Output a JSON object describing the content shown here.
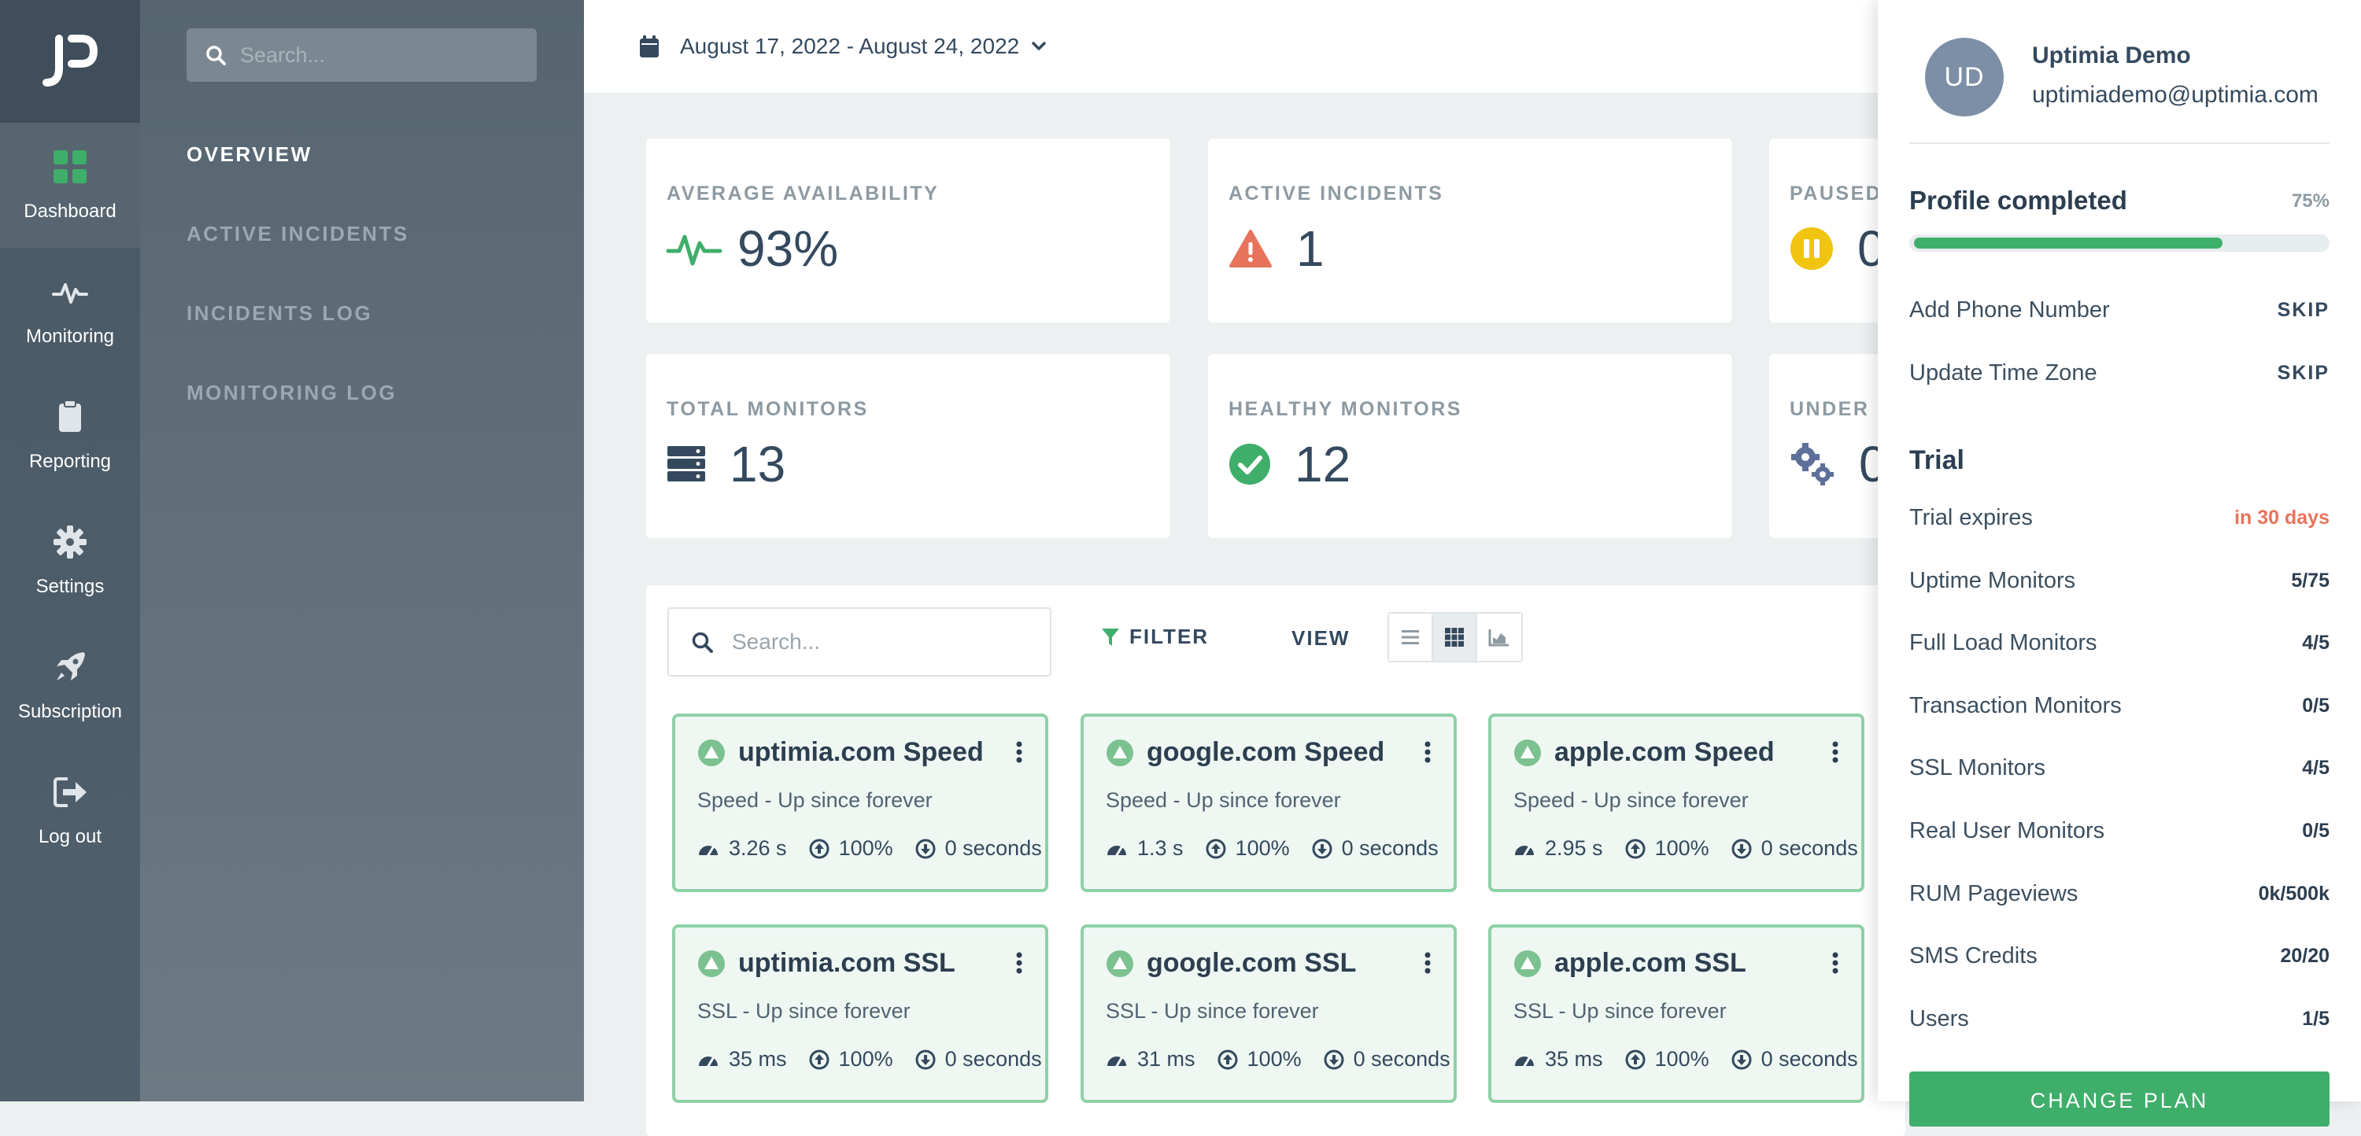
{
  "rail": {
    "items": [
      {
        "label": "Dashboard",
        "icon": "dashboard-icon"
      },
      {
        "label": "Monitoring",
        "icon": "pulse-icon"
      },
      {
        "label": "Reporting",
        "icon": "clipboard-icon"
      },
      {
        "label": "Settings",
        "icon": "gear-icon"
      },
      {
        "label": "Subscription",
        "icon": "rocket-icon"
      },
      {
        "label": "Log out",
        "icon": "logout-icon"
      }
    ]
  },
  "subnav": {
    "search_placeholder": "Search...",
    "links": [
      "OVERVIEW",
      "ACTIVE INCIDENTS",
      "INCIDENTS LOG",
      "MONITORING LOG"
    ]
  },
  "topbar": {
    "date_range": "August 17, 2022 - August 24, 2022"
  },
  "stats": [
    {
      "title": "AVERAGE AVAILABILITY",
      "value": "93%",
      "icon": "pulse-icon"
    },
    {
      "title": "ACTIVE INCIDENTS",
      "value": "1",
      "icon": "warning-icon"
    },
    {
      "title": "PAUSED",
      "value": "0",
      "icon": "pause-icon"
    },
    {
      "title": "TOTAL MONITORS",
      "value": "13",
      "icon": "server-icon"
    },
    {
      "title": "HEALTHY MONITORS",
      "value": "12",
      "icon": "check-circle-icon"
    },
    {
      "title": "UNDER",
      "value": "0",
      "icon": "gears-icon"
    }
  ],
  "monitors_toolbar": {
    "search_placeholder": "Search...",
    "filter_label": "FILTER",
    "view_label": "VIEW"
  },
  "monitors": [
    {
      "name": "uptimia.com Speed",
      "sub": "Speed - Up since forever",
      "s1": "3.26 s",
      "s2": "100%",
      "s3": "0 seconds"
    },
    {
      "name": "google.com Speed",
      "sub": "Speed - Up since forever",
      "s1": "1.3 s",
      "s2": "100%",
      "s3": "0 seconds"
    },
    {
      "name": "apple.com Speed",
      "sub": "Speed - Up since forever",
      "s1": "2.95 s",
      "s2": "100%",
      "s3": "0 seconds"
    },
    {
      "name": "uptimia.com SSL",
      "sub": "SSL - Up since forever",
      "s1": "35 ms",
      "s2": "100%",
      "s3": "0 seconds"
    },
    {
      "name": "google.com SSL",
      "sub": "SSL - Up since forever",
      "s1": "31 ms",
      "s2": "100%",
      "s3": "0 seconds"
    },
    {
      "name": "apple.com SSL",
      "sub": "SSL - Up since forever",
      "s1": "35 ms",
      "s2": "100%",
      "s3": "0 seconds"
    }
  ],
  "profile": {
    "initials": "UD",
    "name": "Uptimia Demo",
    "email": "uptimiademo@uptimia.com",
    "completed_title": "Profile completed",
    "completed_pct": "75%",
    "completed_fraction": 0.75,
    "tasks": [
      {
        "label": "Add Phone Number",
        "action": "SKIP"
      },
      {
        "label": "Update Time Zone",
        "action": "SKIP"
      }
    ],
    "trial_title": "Trial",
    "limits": [
      {
        "label": "Trial expires",
        "value": "in 30 days"
      },
      {
        "label": "Uptime Monitors",
        "value": "5/75"
      },
      {
        "label": "Full Load Monitors",
        "value": "4/5"
      },
      {
        "label": "Transaction Monitors",
        "value": "0/5"
      },
      {
        "label": "SSL Monitors",
        "value": "4/5"
      },
      {
        "label": "Real User Monitors",
        "value": "0/5"
      },
      {
        "label": "RUM Pageviews",
        "value": "0k/500k"
      },
      {
        "label": "SMS Credits",
        "value": "20/20"
      },
      {
        "label": "Users",
        "value": "1/5"
      }
    ],
    "change_plan": "CHANGE PLAN"
  },
  "colors": {
    "accent_green": "#3fae6a",
    "warning_red": "#e8735c",
    "pause_yellow": "#f1c40f",
    "rail_bg": "#4a5966"
  }
}
